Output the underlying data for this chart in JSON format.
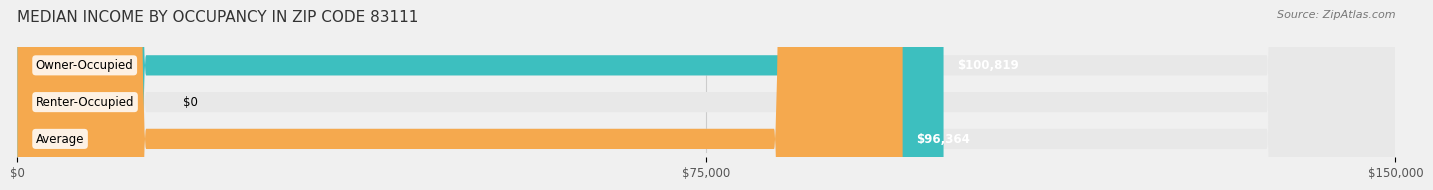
{
  "title": "MEDIAN INCOME BY OCCUPANCY IN ZIP CODE 83111",
  "source": "Source: ZipAtlas.com",
  "categories": [
    "Owner-Occupied",
    "Renter-Occupied",
    "Average"
  ],
  "values": [
    100819,
    0,
    96364
  ],
  "bar_colors": [
    "#3dbfbf",
    "#c9a8d4",
    "#f5a94e"
  ],
  "bar_labels": [
    "$100,819",
    "$0",
    "$96,364"
  ],
  "xlim": [
    0,
    150000
  ],
  "xticks": [
    0,
    75000,
    150000
  ],
  "xtick_labels": [
    "$0",
    "$75,000",
    "$150,000"
  ],
  "background_color": "#f0f0f0",
  "bar_bg_color": "#e8e8e8",
  "title_fontsize": 11,
  "source_fontsize": 8,
  "label_fontsize": 8.5,
  "tick_fontsize": 8.5
}
